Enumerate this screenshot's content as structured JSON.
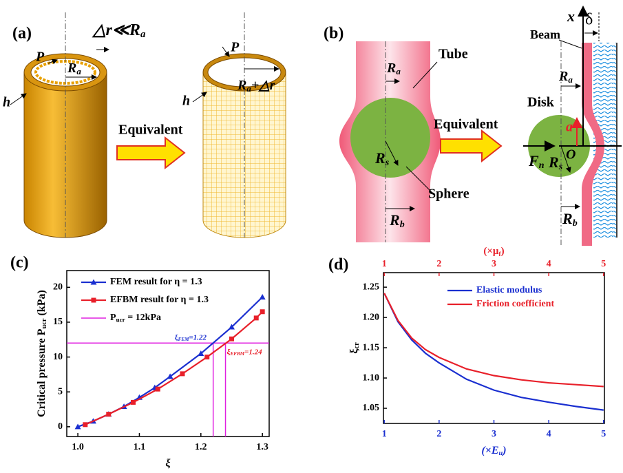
{
  "panel_a": {
    "label": "(a)",
    "condition": {
      "text": "△r≪R",
      "sub": "a"
    },
    "pressure_1": "P",
    "radius_1": {
      "text": "R",
      "sub": "a"
    },
    "thickness_1": "h",
    "arrow": "Equivalent",
    "pressure_2": "P",
    "radius_2": {
      "text": "R",
      "sub": "a",
      "suffix": "+△r"
    },
    "thickness_2": "h"
  },
  "panel_b": {
    "label": "(b)",
    "tube": "Tube",
    "radius_a": {
      "text": "R",
      "sub": "a"
    },
    "radius_s": {
      "text": "R",
      "sub": "s"
    },
    "sphere": "Sphere",
    "radius_b": {
      "text": "R",
      "sub": "b"
    },
    "arrow": "Equivalent",
    "x_axis": "x",
    "delta": "δ",
    "beam": "Beam",
    "radius_a_2": {
      "text": "R",
      "sub": "a"
    },
    "disk": "Disk",
    "offset": "a",
    "origin": "O",
    "force": {
      "text": "F",
      "sub": "n"
    },
    "radius_s_2": {
      "text": "R",
      "sub": "s"
    },
    "radius_b_2": {
      "text": "R",
      "sub": "b"
    }
  },
  "chart_data": [
    {
      "type": "line",
      "panel_label": "(c)",
      "x_label": "ξ",
      "y_label": {
        "text": "Critical pressure  P",
        "sub": "ucr",
        "suffix": " (kPa)"
      },
      "xlim": [
        0.982,
        1.311
      ],
      "ylim": [
        -1.4,
        22.4
      ],
      "xticks": [
        {
          "value": 1,
          "label": "1.0"
        },
        {
          "value": 1.1,
          "label": "1.1"
        },
        {
          "value": 1.2,
          "label": "1.2"
        },
        {
          "value": 1.3,
          "label": "1.3"
        }
      ],
      "yticks": [
        0,
        5,
        10,
        15,
        20
      ],
      "series": [
        {
          "name": "FEM result for  η = 1.3",
          "color": "#1a2fd0",
          "marker": "triangle",
          "x": [
            1.0,
            1.025,
            1.05,
            1.075,
            1.1,
            1.125,
            1.15,
            1.2,
            1.25,
            1.3
          ],
          "values": [
            0,
            0.8,
            1.8,
            2.9,
            4.2,
            5.6,
            7.2,
            10.5,
            14.3,
            18.6
          ]
        },
        {
          "name": "EFBM result for  η = 1.3",
          "color": "#e8202a",
          "marker": "square",
          "x": [
            1.012,
            1.05,
            1.09,
            1.13,
            1.17,
            1.21,
            1.25,
            1.29,
            1.3
          ],
          "values": [
            0.3,
            1.8,
            3.5,
            5.4,
            7.6,
            10.0,
            12.6,
            15.6,
            16.5
          ]
        }
      ],
      "threshold": {
        "name": {
          "text": "P",
          "sub": "ucr",
          "suffix": " = 12kPa"
        },
        "color": "#e020e0",
        "y": 12
      },
      "markers": [
        {
          "x": 1.22,
          "color": "#1a2fd0",
          "label": {
            "text": "ξ",
            "sub": "FEM",
            "suffix": "=1.22"
          }
        },
        {
          "x": 1.24,
          "color": "#e8202a",
          "label": {
            "text": "ξ",
            "sub": "EFBM",
            "suffix": "=1.24"
          }
        }
      ]
    },
    {
      "type": "line",
      "panel_label": "(d)",
      "x_label": {
        "text": "(×E",
        "sub": "u",
        "suffix": ")"
      },
      "x2_label": {
        "text": "(×μ",
        "sub": "f",
        "suffix": ")"
      },
      "y_label": {
        "text": "ξ",
        "sub": "cr"
      },
      "xlim": [
        0.985,
        5.015
      ],
      "x2lim": [
        0.985,
        5.015
      ],
      "ylim": [
        1.025,
        1.274
      ],
      "xticks": [
        1,
        2,
        3,
        4,
        5
      ],
      "x2ticks": [
        1,
        2,
        3,
        4,
        5
      ],
      "x_color": "#1a2fd0",
      "x2_color": "#e8202a",
      "yticks": [
        {
          "value": 1.05,
          "label": "1.05"
        },
        {
          "value": 1.1,
          "label": "1.10"
        },
        {
          "value": 1.15,
          "label": "1.15"
        },
        {
          "value": 1.2,
          "label": "1.20"
        },
        {
          "value": 1.25,
          "label": "1.25"
        }
      ],
      "series": [
        {
          "name": "Elastic modulus",
          "color": "#1a2fd0",
          "x": [
            1,
            1.25,
            1.5,
            1.75,
            2,
            2.5,
            3,
            3.5,
            4,
            4.5,
            5
          ],
          "values": [
            1.24,
            1.193,
            1.163,
            1.141,
            1.125,
            1.098,
            1.08,
            1.068,
            1.06,
            1.053,
            1.047
          ]
        },
        {
          "name": "Friction coefficient",
          "color": "#e8202a",
          "axis": "x2",
          "x": [
            1,
            1.25,
            1.5,
            1.75,
            2,
            2.5,
            3,
            3.5,
            4,
            4.5,
            5
          ],
          "values": [
            1.24,
            1.195,
            1.166,
            1.147,
            1.134,
            1.115,
            1.104,
            1.097,
            1.092,
            1.089,
            1.086
          ]
        }
      ]
    }
  ]
}
